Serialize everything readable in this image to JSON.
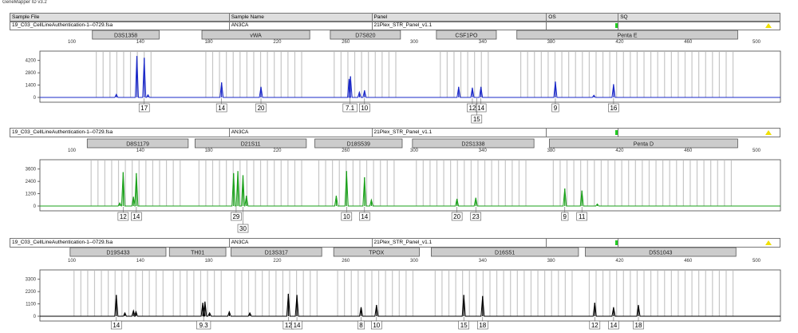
{
  "app_title": "GeneMapper ID v3.2",
  "colors": {
    "blue": "#1a28c8",
    "green": "#1aa01a",
    "black": "#000000",
    "bin": "#c6c6c6",
    "marker_box": "#cccccc",
    "os_status": "#22cc22",
    "sq_status": "#f0e000"
  },
  "header_labels": {
    "file": "Sample File",
    "name": "Sample Name",
    "panel": "Panel",
    "os": "OS",
    "sq": "SQ"
  },
  "x_axis_ticks": [
    100,
    140,
    180,
    220,
    260,
    300,
    340,
    380,
    420,
    460,
    500
  ],
  "panels": [
    {
      "sample_file": "19_C03_CellLineAuthentication-1--0729.fsa",
      "sample_name": "AN3CA",
      "panel_name": "21Plex_STR_Panel_v1.1",
      "color": "blue",
      "y_ticks": [
        0,
        1400,
        2800,
        4200
      ],
      "y_max": 4900,
      "markers": [
        {
          "name": "D3S1358",
          "start": 112,
          "end": 151
        },
        {
          "name": "vWA",
          "start": 176,
          "end": 239
        },
        {
          "name": "D7S820",
          "start": 251,
          "end": 292
        },
        {
          "name": "CSF1PO",
          "start": 313,
          "end": 348
        },
        {
          "name": "Penta E",
          "start": 360,
          "end": 489
        }
      ],
      "peaks": [
        {
          "x": 138,
          "h": 4700
        },
        {
          "x": 142.3,
          "h": 4500
        },
        {
          "x": 144.5,
          "h": 300
        },
        {
          "x": 126,
          "h": 350
        },
        {
          "x": 187.5,
          "h": 1700
        },
        {
          "x": 210.5,
          "h": 1200
        },
        {
          "x": 262,
          "h": 2100
        },
        {
          "x": 262.8,
          "h": 2400
        },
        {
          "x": 268,
          "h": 600
        },
        {
          "x": 271,
          "h": 800
        },
        {
          "x": 326,
          "h": 1200
        },
        {
          "x": 334,
          "h": 1100
        },
        {
          "x": 339,
          "h": 1200
        },
        {
          "x": 382.5,
          "h": 1800
        },
        {
          "x": 416.5,
          "h": 1500
        },
        {
          "x": 405,
          "h": 250
        }
      ],
      "alleles": [
        {
          "x": 142.3,
          "label": "17",
          "row": 0
        },
        {
          "x": 187.5,
          "label": "14",
          "row": 0
        },
        {
          "x": 210.5,
          "label": "20",
          "row": 0
        },
        {
          "x": 262.5,
          "label": "7.1",
          "row": 0
        },
        {
          "x": 271,
          "label": "10",
          "row": 0
        },
        {
          "x": 334,
          "label": "12",
          "row": 0
        },
        {
          "x": 339,
          "label": "14",
          "row": 0
        },
        {
          "x": 336.5,
          "label": "15",
          "row": 1
        },
        {
          "x": 382.5,
          "label": "9",
          "row": 0
        },
        {
          "x": 416.5,
          "label": "16",
          "row": 0
        }
      ]
    },
    {
      "sample_file": "19_C03_CellLineAuthentication-1--0729.fsa",
      "sample_name": "AN3CA",
      "panel_name": "21Plex_STR_Panel_v1.1",
      "color": "green",
      "y_ticks": [
        0,
        1200,
        2400,
        3600
      ],
      "y_max": 4200,
      "markers": [
        {
          "name": "D8S1179",
          "start": 109,
          "end": 168
        },
        {
          "name": "D21S11",
          "start": 172,
          "end": 237
        },
        {
          "name": "D18S539",
          "start": 242,
          "end": 293
        },
        {
          "name": "D2S1338",
          "start": 299,
          "end": 370
        },
        {
          "name": "Penta D",
          "start": 379,
          "end": 489
        }
      ],
      "peaks": [
        {
          "x": 130,
          "h": 3300
        },
        {
          "x": 136,
          "h": 900
        },
        {
          "x": 137.7,
          "h": 3200
        },
        {
          "x": 128,
          "h": 300
        },
        {
          "x": 194.5,
          "h": 3200
        },
        {
          "x": 197,
          "h": 3400
        },
        {
          "x": 200,
          "h": 3000
        },
        {
          "x": 202,
          "h": 1000
        },
        {
          "x": 254.5,
          "h": 1000
        },
        {
          "x": 260.5,
          "h": 3400
        },
        {
          "x": 271,
          "h": 2800
        },
        {
          "x": 275,
          "h": 600
        },
        {
          "x": 325,
          "h": 700
        },
        {
          "x": 336,
          "h": 800
        },
        {
          "x": 388,
          "h": 1700
        },
        {
          "x": 398,
          "h": 1500
        },
        {
          "x": 407,
          "h": 200
        }
      ],
      "alleles": [
        {
          "x": 130,
          "label": "12",
          "row": 0
        },
        {
          "x": 137.7,
          "label": "14",
          "row": 0
        },
        {
          "x": 196,
          "label": "29",
          "row": 0
        },
        {
          "x": 200,
          "label": "30",
          "row": 1
        },
        {
          "x": 260.5,
          "label": "10",
          "row": 0
        },
        {
          "x": 271,
          "label": "14",
          "row": 0
        },
        {
          "x": 325,
          "label": "20",
          "row": 0
        },
        {
          "x": 336,
          "label": "23",
          "row": 0
        },
        {
          "x": 388,
          "label": "9",
          "row": 0
        },
        {
          "x": 398,
          "label": "11",
          "row": 0
        }
      ]
    },
    {
      "sample_file": "19_C03_CellLineAuthentication-1--0729.fsa",
      "sample_name": "AN3CA",
      "panel_name": "21Plex_STR_Panel_v1.1",
      "color": "black",
      "y_ticks": [
        0,
        1100,
        2200,
        3300
      ],
      "y_max": 3850,
      "markers": [
        {
          "name": "D19S433",
          "start": 99,
          "end": 155
        },
        {
          "name": "TH01",
          "start": 157,
          "end": 190
        },
        {
          "name": "D13S317",
          "start": 193,
          "end": 246
        },
        {
          "name": "TPOX",
          "start": 253,
          "end": 303
        },
        {
          "name": "D16S51",
          "start": 310,
          "end": 396
        },
        {
          "name": "D5S1043",
          "start": 400,
          "end": 488
        }
      ],
      "peaks": [
        {
          "x": 126,
          "h": 1900
        },
        {
          "x": 131,
          "h": 300
        },
        {
          "x": 136,
          "h": 500
        },
        {
          "x": 137.5,
          "h": 400
        },
        {
          "x": 176.5,
          "h": 1200
        },
        {
          "x": 177.8,
          "h": 1300
        },
        {
          "x": 180.5,
          "h": 300
        },
        {
          "x": 192,
          "h": 400
        },
        {
          "x": 204,
          "h": 300
        },
        {
          "x": 226.5,
          "h": 2000
        },
        {
          "x": 231.5,
          "h": 1900
        },
        {
          "x": 269,
          "h": 800
        },
        {
          "x": 278,
          "h": 1000
        },
        {
          "x": 329,
          "h": 1900
        },
        {
          "x": 340,
          "h": 1800
        },
        {
          "x": 405.5,
          "h": 1200
        },
        {
          "x": 416.5,
          "h": 800
        },
        {
          "x": 431,
          "h": 1000
        }
      ],
      "alleles": [
        {
          "x": 126,
          "label": "14",
          "row": 0
        },
        {
          "x": 177,
          "label": "9.3",
          "row": 0
        },
        {
          "x": 226.5,
          "label": "12",
          "row": 0
        },
        {
          "x": 231.5,
          "label": "14",
          "row": 0
        },
        {
          "x": 269,
          "label": "8",
          "row": 0
        },
        {
          "x": 278,
          "label": "10",
          "row": 0
        },
        {
          "x": 329,
          "label": "15",
          "row": 0
        },
        {
          "x": 340,
          "label": "18",
          "row": 0
        },
        {
          "x": 405.5,
          "label": "12",
          "row": 0
        },
        {
          "x": 416.5,
          "label": "14",
          "row": 0
        },
        {
          "x": 431,
          "label": "18",
          "row": 0
        }
      ]
    }
  ]
}
